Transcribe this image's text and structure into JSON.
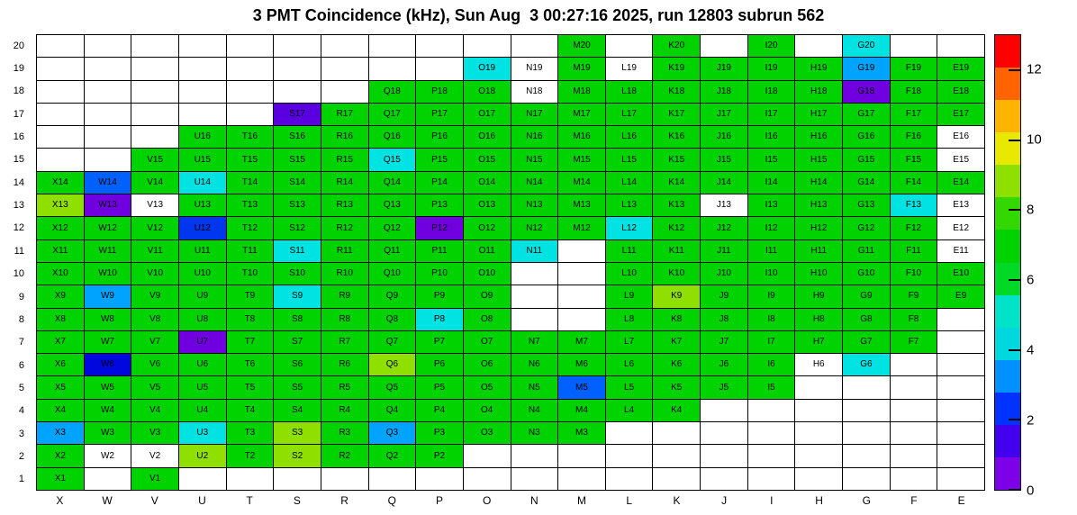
{
  "title": "3 PMT Coincidence (kHz), Sun Aug  3 00:27:16 2025, run 12803 subrun 562",
  "chart_data": {
    "type": "heatmap",
    "title": "3 PMT Coincidence (kHz), Sun Aug  3 00:27:16 2025, run 12803 subrun 562",
    "xlabel": "",
    "ylabel": "",
    "columns": [
      "X",
      "W",
      "V",
      "U",
      "T",
      "S",
      "R",
      "Q",
      "P",
      "O",
      "N",
      "M",
      "L",
      "K",
      "J",
      "I",
      "H",
      "G",
      "F",
      "E"
    ],
    "rows": [
      20,
      19,
      18,
      17,
      16,
      15,
      14,
      13,
      12,
      11,
      10,
      9,
      8,
      7,
      6,
      5,
      4,
      3,
      2,
      1
    ],
    "colorbar": {
      "min": 0,
      "max": 13,
      "ticks": [
        0,
        2,
        4,
        6,
        8,
        10,
        12
      ],
      "band_colors_bottom_to_top": [
        "#7d00e8",
        "#4100ee",
        "#0033ff",
        "#0090ff",
        "#00d8e0",
        "#00e3c8",
        "#00d926",
        "#00d300",
        "#33d800",
        "#8fdf00",
        "#e8e800",
        "#ffb400",
        "#ff6400",
        "#ff0000"
      ]
    },
    "palette": {
      "g": "#00d300",
      "y": "#8fdf00",
      "c": "#00e3e3",
      "s": "#00a4ff",
      "b": "#0061ff",
      "r": "#0036ee",
      "d": "#0008e0",
      "v": "#7000e0",
      "V": "#5a00e0",
      "w": "#ffffff"
    },
    "palette_value_estimates_khz": {
      "g": 6.5,
      "y": 8.5,
      "c": 4.3,
      "s": 3.2,
      "b": 2.6,
      "r": 2.1,
      "d": 1.4,
      "v": 0.8,
      "V": 1.0,
      "w": null
    },
    "cells": [
      [
        "M20",
        "g"
      ],
      [
        "K20",
        "g"
      ],
      [
        "I20",
        "g"
      ],
      [
        "G20",
        "c"
      ],
      [
        "O19",
        "c"
      ],
      [
        "N19",
        "w"
      ],
      [
        "M19",
        "g"
      ],
      [
        "L19",
        "w"
      ],
      [
        "K19",
        "g"
      ],
      [
        "J19",
        "g"
      ],
      [
        "I19",
        "g"
      ],
      [
        "H19",
        "g"
      ],
      [
        "G19",
        "s"
      ],
      [
        "F19",
        "g"
      ],
      [
        "E19",
        "g"
      ],
      [
        "Q18",
        "g"
      ],
      [
        "P18",
        "g"
      ],
      [
        "O18",
        "g"
      ],
      [
        "N18",
        "w"
      ],
      [
        "M18",
        "g"
      ],
      [
        "L18",
        "g"
      ],
      [
        "K18",
        "g"
      ],
      [
        "J18",
        "g"
      ],
      [
        "I18",
        "g"
      ],
      [
        "H18",
        "g"
      ],
      [
        "G18",
        "v"
      ],
      [
        "F18",
        "g"
      ],
      [
        "E18",
        "g"
      ],
      [
        "S17",
        "V"
      ],
      [
        "R17",
        "g"
      ],
      [
        "Q17",
        "g"
      ],
      [
        "P17",
        "g"
      ],
      [
        "O17",
        "g"
      ],
      [
        "N17",
        "g"
      ],
      [
        "M17",
        "g"
      ],
      [
        "L17",
        "g"
      ],
      [
        "K17",
        "g"
      ],
      [
        "J17",
        "g"
      ],
      [
        "I17",
        "g"
      ],
      [
        "H17",
        "g"
      ],
      [
        "G17",
        "g"
      ],
      [
        "F17",
        "g"
      ],
      [
        "E17",
        "g"
      ],
      [
        "U16",
        "g"
      ],
      [
        "T16",
        "g"
      ],
      [
        "S16",
        "g"
      ],
      [
        "R16",
        "g"
      ],
      [
        "Q16",
        "g"
      ],
      [
        "P16",
        "g"
      ],
      [
        "O16",
        "g"
      ],
      [
        "N16",
        "g"
      ],
      [
        "M16",
        "g"
      ],
      [
        "L16",
        "g"
      ],
      [
        "K16",
        "g"
      ],
      [
        "J16",
        "g"
      ],
      [
        "I16",
        "g"
      ],
      [
        "H16",
        "g"
      ],
      [
        "G16",
        "g"
      ],
      [
        "F16",
        "g"
      ],
      [
        "E16",
        "w"
      ],
      [
        "V15",
        "g"
      ],
      [
        "U15",
        "g"
      ],
      [
        "T15",
        "g"
      ],
      [
        "S15",
        "g"
      ],
      [
        "R15",
        "g"
      ],
      [
        "Q15",
        "c"
      ],
      [
        "P15",
        "g"
      ],
      [
        "O15",
        "g"
      ],
      [
        "N15",
        "g"
      ],
      [
        "M15",
        "g"
      ],
      [
        "L15",
        "g"
      ],
      [
        "K15",
        "g"
      ],
      [
        "J15",
        "g"
      ],
      [
        "I15",
        "g"
      ],
      [
        "H15",
        "g"
      ],
      [
        "G15",
        "g"
      ],
      [
        "F15",
        "g"
      ],
      [
        "E15",
        "w"
      ],
      [
        "X14",
        "g"
      ],
      [
        "W14",
        "b"
      ],
      [
        "V14",
        "g"
      ],
      [
        "U14",
        "c"
      ],
      [
        "T14",
        "g"
      ],
      [
        "S14",
        "g"
      ],
      [
        "R14",
        "g"
      ],
      [
        "Q14",
        "g"
      ],
      [
        "P14",
        "g"
      ],
      [
        "O14",
        "g"
      ],
      [
        "N14",
        "g"
      ],
      [
        "M14",
        "g"
      ],
      [
        "L14",
        "g"
      ],
      [
        "K14",
        "g"
      ],
      [
        "J14",
        "g"
      ],
      [
        "I14",
        "g"
      ],
      [
        "H14",
        "g"
      ],
      [
        "G14",
        "g"
      ],
      [
        "F14",
        "g"
      ],
      [
        "E14",
        "g"
      ],
      [
        "X13",
        "y"
      ],
      [
        "W13",
        "v"
      ],
      [
        "V13",
        "w"
      ],
      [
        "U13",
        "g"
      ],
      [
        "T13",
        "g"
      ],
      [
        "S13",
        "g"
      ],
      [
        "R13",
        "g"
      ],
      [
        "Q13",
        "g"
      ],
      [
        "P13",
        "g"
      ],
      [
        "O13",
        "g"
      ],
      [
        "N13",
        "g"
      ],
      [
        "M13",
        "g"
      ],
      [
        "L13",
        "g"
      ],
      [
        "K13",
        "g"
      ],
      [
        "J13",
        "w"
      ],
      [
        "I13",
        "g"
      ],
      [
        "H13",
        "g"
      ],
      [
        "G13",
        "g"
      ],
      [
        "F13",
        "c"
      ],
      [
        "E13",
        "w"
      ],
      [
        "X12",
        "g"
      ],
      [
        "W12",
        "g"
      ],
      [
        "V12",
        "g"
      ],
      [
        "U12",
        "r"
      ],
      [
        "T12",
        "g"
      ],
      [
        "S12",
        "g"
      ],
      [
        "R12",
        "g"
      ],
      [
        "Q12",
        "g"
      ],
      [
        "P12",
        "v"
      ],
      [
        "O12",
        "g"
      ],
      [
        "N12",
        "g"
      ],
      [
        "M12",
        "g"
      ],
      [
        "L12",
        "c"
      ],
      [
        "K12",
        "g"
      ],
      [
        "J12",
        "g"
      ],
      [
        "I12",
        "g"
      ],
      [
        "H12",
        "g"
      ],
      [
        "G12",
        "g"
      ],
      [
        "F12",
        "g"
      ],
      [
        "E12",
        "w"
      ],
      [
        "X11",
        "g"
      ],
      [
        "W11",
        "g"
      ],
      [
        "V11",
        "g"
      ],
      [
        "U11",
        "g"
      ],
      [
        "T11",
        "g"
      ],
      [
        "S11",
        "c"
      ],
      [
        "R11",
        "g"
      ],
      [
        "Q11",
        "g"
      ],
      [
        "P11",
        "g"
      ],
      [
        "O11",
        "g"
      ],
      [
        "N11",
        "c"
      ],
      [
        "L11",
        "g"
      ],
      [
        "K11",
        "g"
      ],
      [
        "J11",
        "g"
      ],
      [
        "I11",
        "g"
      ],
      [
        "H11",
        "g"
      ],
      [
        "G11",
        "g"
      ],
      [
        "F11",
        "g"
      ],
      [
        "E11",
        "w"
      ],
      [
        "X10",
        "g"
      ],
      [
        "W10",
        "g"
      ],
      [
        "V10",
        "g"
      ],
      [
        "U10",
        "g"
      ],
      [
        "T10",
        "g"
      ],
      [
        "S10",
        "g"
      ],
      [
        "R10",
        "g"
      ],
      [
        "Q10",
        "g"
      ],
      [
        "P10",
        "g"
      ],
      [
        "O10",
        "g"
      ],
      [
        "L10",
        "g"
      ],
      [
        "K10",
        "g"
      ],
      [
        "J10",
        "g"
      ],
      [
        "I10",
        "g"
      ],
      [
        "H10",
        "g"
      ],
      [
        "G10",
        "g"
      ],
      [
        "F10",
        "g"
      ],
      [
        "E10",
        "g"
      ],
      [
        "X9",
        "g"
      ],
      [
        "W9",
        "s"
      ],
      [
        "V9",
        "g"
      ],
      [
        "U9",
        "g"
      ],
      [
        "T9",
        "g"
      ],
      [
        "S9",
        "c"
      ],
      [
        "R9",
        "g"
      ],
      [
        "Q9",
        "g"
      ],
      [
        "P9",
        "g"
      ],
      [
        "O9",
        "g"
      ],
      [
        "L9",
        "g"
      ],
      [
        "K9",
        "y"
      ],
      [
        "J9",
        "g"
      ],
      [
        "I9",
        "g"
      ],
      [
        "H9",
        "g"
      ],
      [
        "G9",
        "g"
      ],
      [
        "F9",
        "g"
      ],
      [
        "E9",
        "g"
      ],
      [
        "X8",
        "g"
      ],
      [
        "W8",
        "g"
      ],
      [
        "V8",
        "g"
      ],
      [
        "U8",
        "g"
      ],
      [
        "T8",
        "g"
      ],
      [
        "S8",
        "g"
      ],
      [
        "R8",
        "g"
      ],
      [
        "Q8",
        "g"
      ],
      [
        "P8",
        "c"
      ],
      [
        "O8",
        "g"
      ],
      [
        "L8",
        "g"
      ],
      [
        "K8",
        "g"
      ],
      [
        "J8",
        "g"
      ],
      [
        "I8",
        "g"
      ],
      [
        "H8",
        "g"
      ],
      [
        "G8",
        "g"
      ],
      [
        "F8",
        "g"
      ],
      [
        "X7",
        "g"
      ],
      [
        "W7",
        "g"
      ],
      [
        "V7",
        "g"
      ],
      [
        "U7",
        "v"
      ],
      [
        "T7",
        "g"
      ],
      [
        "S7",
        "g"
      ],
      [
        "R7",
        "g"
      ],
      [
        "Q7",
        "g"
      ],
      [
        "P7",
        "g"
      ],
      [
        "O7",
        "g"
      ],
      [
        "N7",
        "g"
      ],
      [
        "M7",
        "g"
      ],
      [
        "L7",
        "g"
      ],
      [
        "K7",
        "g"
      ],
      [
        "J7",
        "g"
      ],
      [
        "I7",
        "g"
      ],
      [
        "H7",
        "g"
      ],
      [
        "G7",
        "g"
      ],
      [
        "F7",
        "g"
      ],
      [
        "X6",
        "g"
      ],
      [
        "W6",
        "d"
      ],
      [
        "V6",
        "g"
      ],
      [
        "U6",
        "g"
      ],
      [
        "T6",
        "g"
      ],
      [
        "S6",
        "g"
      ],
      [
        "R6",
        "g"
      ],
      [
        "Q6",
        "y"
      ],
      [
        "P6",
        "g"
      ],
      [
        "O6",
        "g"
      ],
      [
        "N6",
        "g"
      ],
      [
        "M6",
        "g"
      ],
      [
        "L6",
        "g"
      ],
      [
        "K6",
        "g"
      ],
      [
        "J6",
        "g"
      ],
      [
        "I6",
        "g"
      ],
      [
        "H6",
        "w"
      ],
      [
        "G6",
        "c"
      ],
      [
        "X5",
        "g"
      ],
      [
        "W5",
        "g"
      ],
      [
        "V5",
        "g"
      ],
      [
        "U5",
        "g"
      ],
      [
        "T5",
        "g"
      ],
      [
        "S5",
        "g"
      ],
      [
        "R5",
        "g"
      ],
      [
        "Q5",
        "g"
      ],
      [
        "P5",
        "g"
      ],
      [
        "O5",
        "g"
      ],
      [
        "N5",
        "g"
      ],
      [
        "M5",
        "b"
      ],
      [
        "L5",
        "g"
      ],
      [
        "K5",
        "g"
      ],
      [
        "J5",
        "g"
      ],
      [
        "I5",
        "g"
      ],
      [
        "X4",
        "g"
      ],
      [
        "W4",
        "g"
      ],
      [
        "V4",
        "g"
      ],
      [
        "U4",
        "g"
      ],
      [
        "T4",
        "g"
      ],
      [
        "S4",
        "g"
      ],
      [
        "R4",
        "g"
      ],
      [
        "Q4",
        "g"
      ],
      [
        "P4",
        "g"
      ],
      [
        "O4",
        "g"
      ],
      [
        "N4",
        "g"
      ],
      [
        "M4",
        "g"
      ],
      [
        "L4",
        "g"
      ],
      [
        "K4",
        "g"
      ],
      [
        "X3",
        "s"
      ],
      [
        "W3",
        "g"
      ],
      [
        "V3",
        "g"
      ],
      [
        "U3",
        "c"
      ],
      [
        "T3",
        "g"
      ],
      [
        "S3",
        "y"
      ],
      [
        "R3",
        "g"
      ],
      [
        "Q3",
        "s"
      ],
      [
        "P3",
        "g"
      ],
      [
        "O3",
        "g"
      ],
      [
        "N3",
        "g"
      ],
      [
        "M3",
        "g"
      ],
      [
        "X2",
        "g"
      ],
      [
        "W2",
        "w"
      ],
      [
        "V2",
        "w"
      ],
      [
        "U2",
        "y"
      ],
      [
        "T2",
        "g"
      ],
      [
        "S2",
        "y"
      ],
      [
        "R2",
        "g"
      ],
      [
        "Q2",
        "g"
      ],
      [
        "P2",
        "g"
      ],
      [
        "X1",
        "g"
      ],
      [
        "V1",
        "g"
      ]
    ]
  }
}
